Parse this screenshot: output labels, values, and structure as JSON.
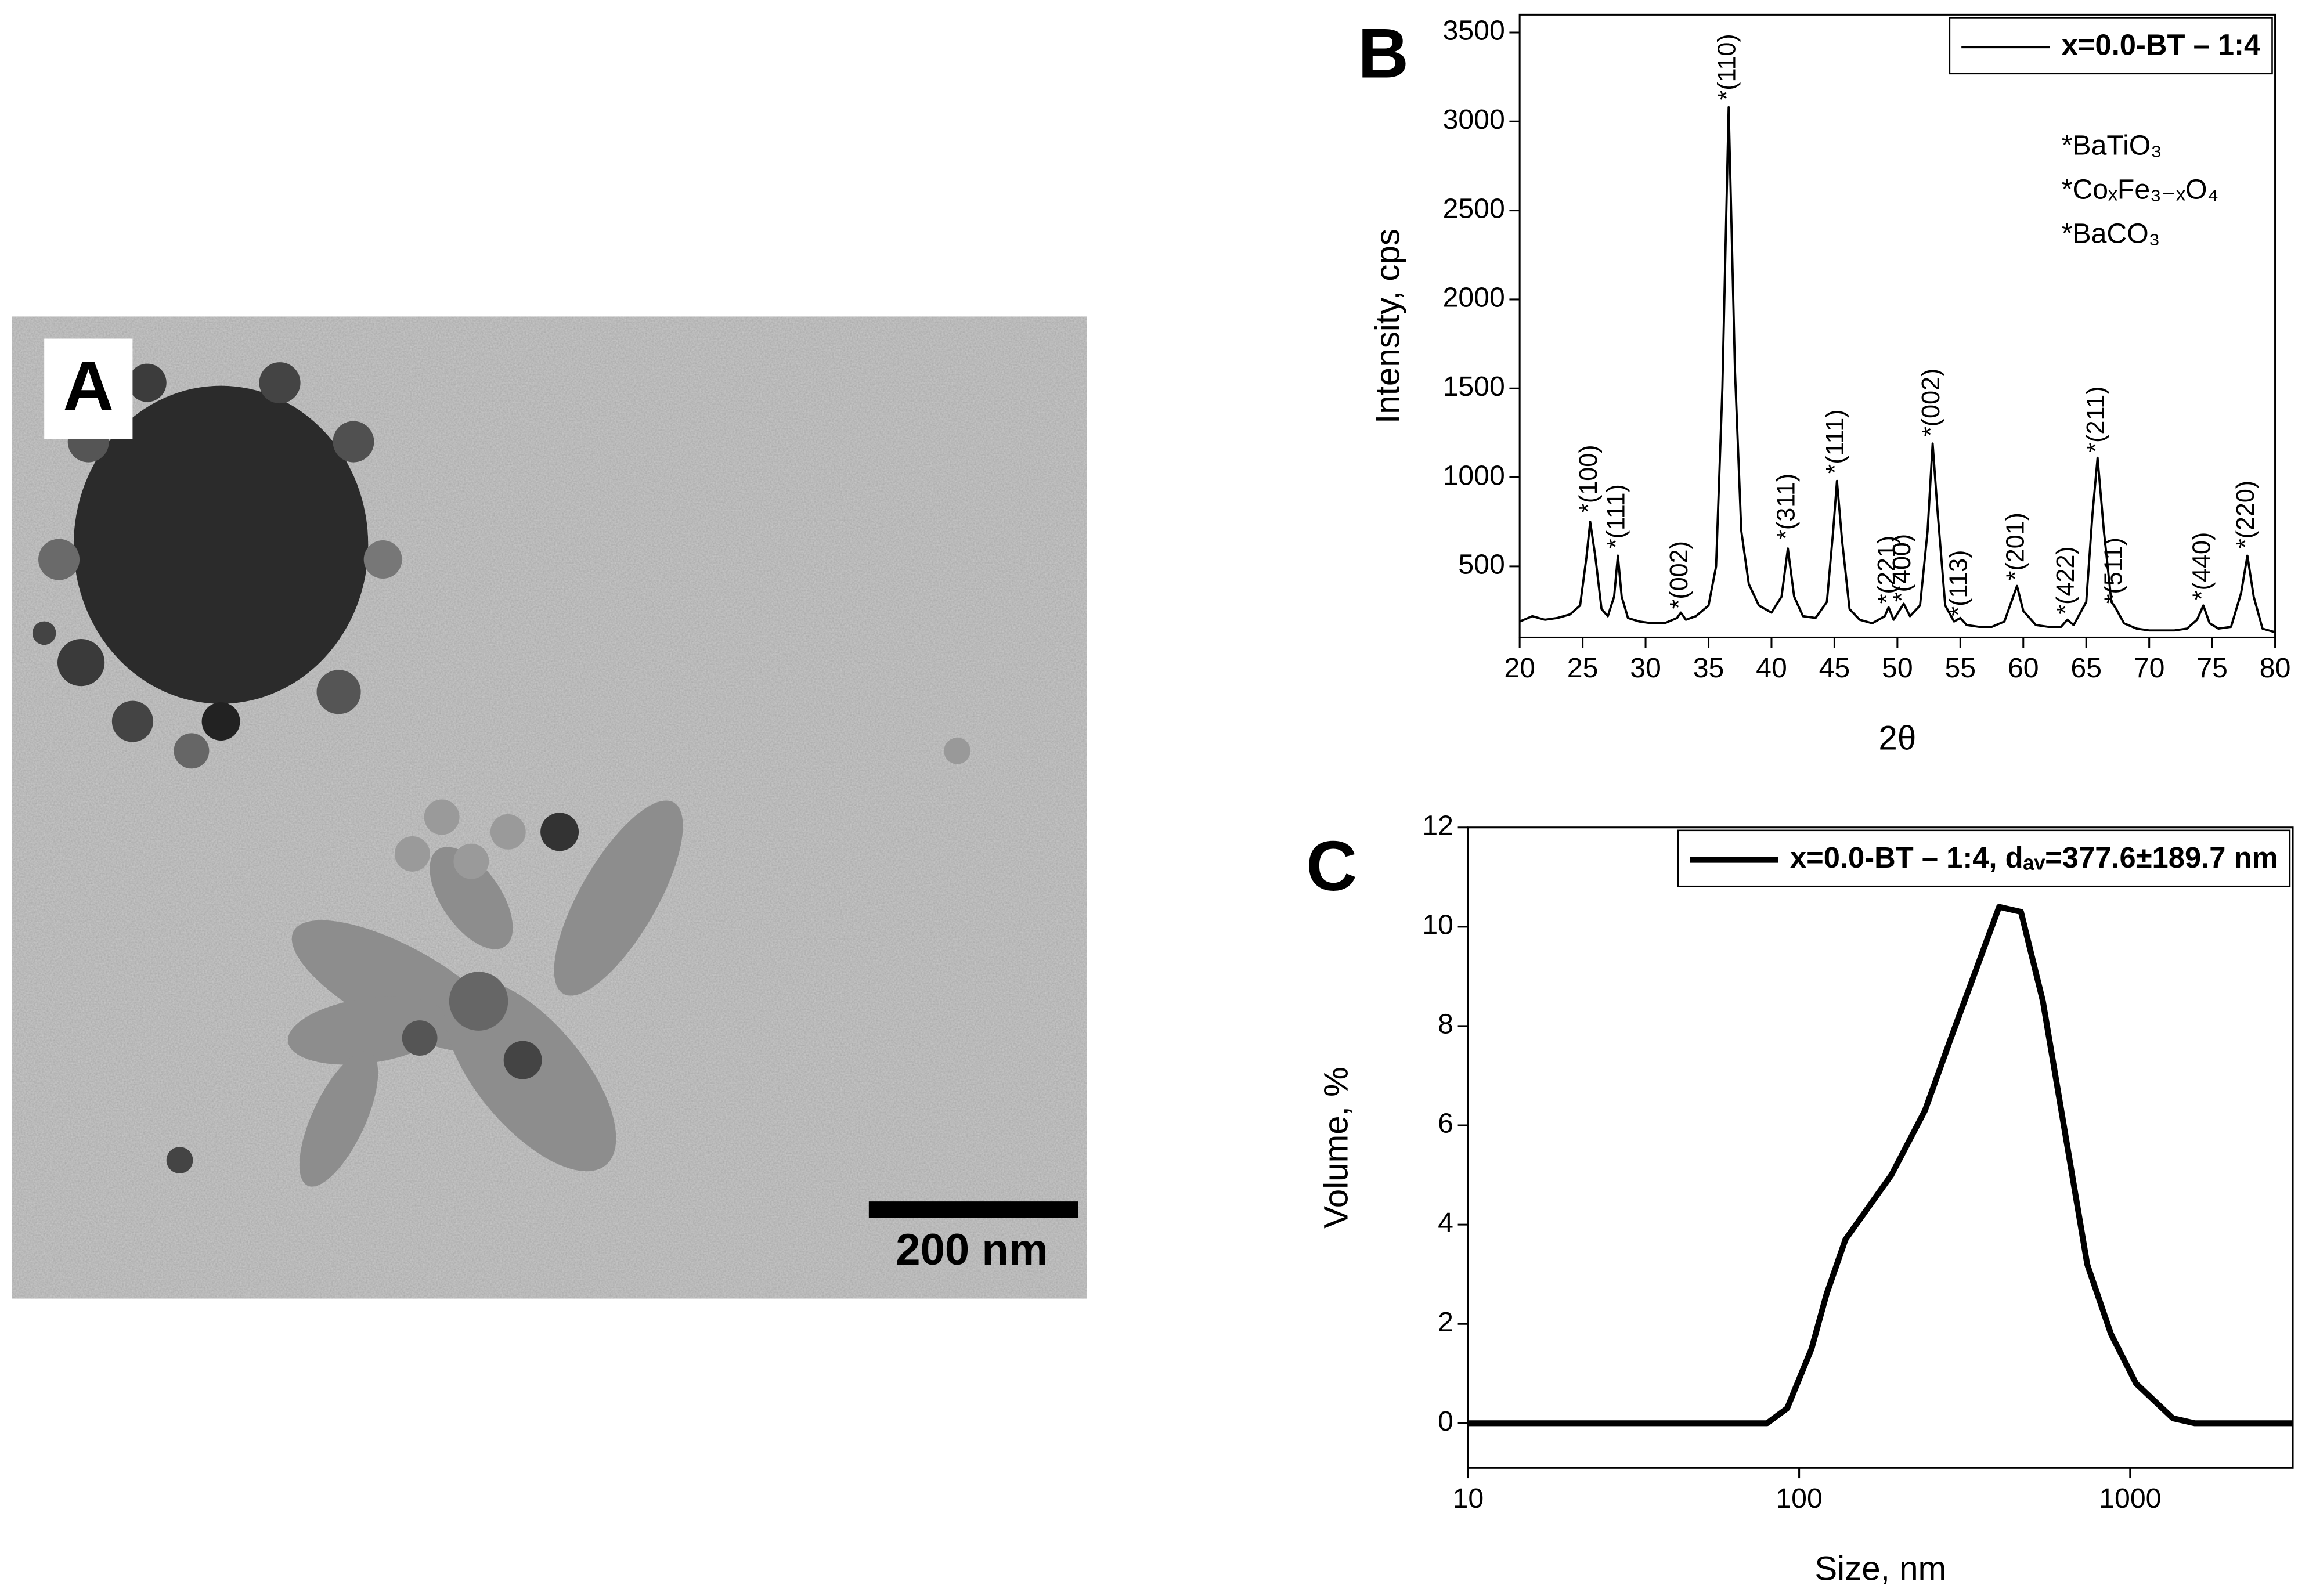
{
  "panel_a": {
    "label": "A",
    "scale_bar": "200 nm"
  },
  "chart_data": [
    {
      "type": "line",
      "panel_label": "B",
      "xlabel": "2θ",
      "ylabel": "Intensity, cps",
      "xlim": [
        20,
        80
      ],
      "xticks": [
        20,
        25,
        30,
        35,
        40,
        45,
        50,
        55,
        60,
        65,
        70,
        75,
        80
      ],
      "ylim": [
        100,
        3600
      ],
      "yticks": [
        500,
        1000,
        1500,
        2000,
        2500,
        3000,
        3500
      ],
      "legend": "upper right",
      "series": [
        {
          "name": "x=0.0-BT – 1:4",
          "color": "#000000",
          "linewidth": 1.5,
          "x": [
            20,
            21,
            22,
            23,
            24,
            24.8,
            25.3,
            25.6,
            26,
            26.5,
            27,
            27.5,
            27.8,
            28.1,
            28.6,
            29.5,
            30.5,
            31.5,
            32.5,
            32.8,
            33.2,
            34,
            35,
            35.6,
            36.1,
            36.6,
            37.1,
            37.6,
            38.2,
            39,
            40,
            40.8,
            41.3,
            41.8,
            42.5,
            43.5,
            44.4,
            44.9,
            45.2,
            45.6,
            46.2,
            47,
            48,
            49,
            49.3,
            49.7,
            50.5,
            51,
            51.8,
            52.4,
            52.8,
            53.2,
            53.8,
            54.5,
            55,
            55.5,
            56.5,
            57.5,
            58.5,
            59.2,
            59.5,
            60,
            61,
            62,
            63,
            63.5,
            64,
            65,
            65.5,
            65.9,
            66.4,
            67,
            67.3,
            68,
            69,
            70,
            71,
            72,
            73,
            73.8,
            74.3,
            74.8,
            75.5,
            76.5,
            77.3,
            77.8,
            78.3,
            79,
            80
          ],
          "values": [
            190,
            220,
            200,
            210,
            230,
            280,
            550,
            750,
            560,
            260,
            220,
            330,
            560,
            330,
            210,
            190,
            180,
            180,
            210,
            240,
            200,
            220,
            280,
            500,
            1500,
            3080,
            1600,
            700,
            400,
            280,
            240,
            330,
            600,
            330,
            220,
            210,
            300,
            700,
            980,
            650,
            260,
            200,
            180,
            220,
            270,
            200,
            290,
            220,
            280,
            700,
            1190,
            800,
            280,
            190,
            210,
            170,
            160,
            160,
            190,
            330,
            390,
            250,
            170,
            160,
            160,
            200,
            170,
            300,
            800,
            1110,
            700,
            300,
            270,
            180,
            150,
            140,
            140,
            140,
            150,
            200,
            280,
            180,
            150,
            160,
            350,
            560,
            330,
            150,
            130
          ]
        }
      ],
      "annotations": [
        {
          "text": "*(100)",
          "x": 25.6,
          "y": 800,
          "color": "#ff0000"
        },
        {
          "text": "*(111)",
          "x": 27.8,
          "y": 600,
          "color": "#007f00"
        },
        {
          "text": "*(002)",
          "x": 32.8,
          "y": 260,
          "color": "#007f00"
        },
        {
          "text": "*(110)",
          "x": 36.6,
          "y": 3120,
          "color": "#ff0000"
        },
        {
          "text": "*(311)",
          "x": 41.3,
          "y": 650,
          "color": "#0000ff"
        },
        {
          "text": "*(111)",
          "x": 45.2,
          "y": 1020,
          "color": "#ff0000"
        },
        {
          "text": "*(221)",
          "x": 49.3,
          "y": 290,
          "color": "#007f00"
        },
        {
          "text": "*(400)",
          "x": 50.5,
          "y": 300,
          "color": "#0000ff"
        },
        {
          "text": "*(002)",
          "x": 52.8,
          "y": 1230,
          "color": "#ff0000"
        },
        {
          "text": "*(113)",
          "x": 55,
          "y": 220,
          "color": "#007f00"
        },
        {
          "text": "*(201)",
          "x": 59.5,
          "y": 420,
          "color": "#ff0000"
        },
        {
          "text": "*(422)",
          "x": 63.5,
          "y": 230,
          "color": "#0000ff"
        },
        {
          "text": "*(211)",
          "x": 65.9,
          "y": 1140,
          "color": "#ff0000"
        },
        {
          "text": "*(511)",
          "x": 67.3,
          "y": 290,
          "color": "#0000ff"
        },
        {
          "text": "*(440)",
          "x": 74.3,
          "y": 310,
          "color": "#0000ff"
        },
        {
          "text": "*(220)",
          "x": 77.8,
          "y": 600,
          "color": "#ff0000"
        }
      ],
      "phase_legend": [
        {
          "text": "*BaTiO₃",
          "color": "#ff0000"
        },
        {
          "text": "*CoₓFe₃₋ₓO₄",
          "color": "#0000ff"
        },
        {
          "text": "*BaCO₃",
          "color": "#007f00"
        }
      ]
    },
    {
      "type": "line",
      "panel_label": "C",
      "xlabel": "Size, nm",
      "ylabel": "Volume, %",
      "xscale": "log",
      "xlim": [
        10,
        3100
      ],
      "xticks": [
        10,
        100,
        1000
      ],
      "ylim": [
        -0.9,
        12
      ],
      "yticks": [
        0,
        2,
        4,
        6,
        8,
        10,
        12
      ],
      "legend": "upper right",
      "series": [
        {
          "name": "x=0.0-BT – 1:4, dₐᵥ=377.6±189.7 nm",
          "color": "#000000",
          "linewidth": 4,
          "x": [
            10,
            80,
            92,
            109,
            121,
            138,
            190,
            240,
            289,
            402,
            468,
            545,
            742,
            875,
            1042,
            1346,
            1567,
            3100
          ],
          "values": [
            0,
            0,
            0.3,
            1.5,
            2.6,
            3.7,
            5,
            6.3,
            7.8,
            10.4,
            10.3,
            8.5,
            3.2,
            1.8,
            0.8,
            0.1,
            0,
            0
          ]
        }
      ]
    }
  ]
}
